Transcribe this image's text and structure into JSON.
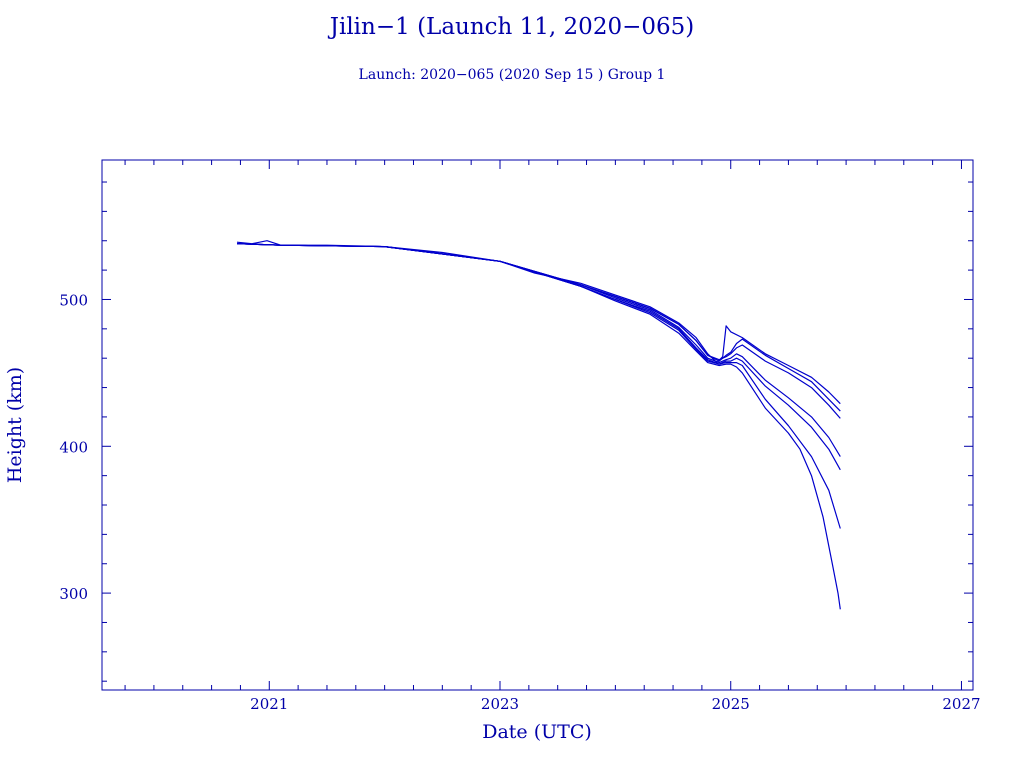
{
  "chart_data": {
    "type": "line",
    "title": "Jilin−1 (Launch 11, 2020−065)",
    "subtitle": "Launch: 2020−065  (2020 Sep 15 )  Group 1",
    "xlabel": "Date (UTC)",
    "ylabel": "Height (km)",
    "xlim": [
      2019.55,
      2027.1
    ],
    "ylim": [
      234,
      595
    ],
    "x_ticks": [
      2021,
      2023,
      2025,
      2027
    ],
    "x_tick_labels": [
      "2021",
      "2023",
      "2025",
      "2027"
    ],
    "y_ticks": [
      300,
      400,
      500
    ],
    "y_tick_labels": [
      "300",
      "400",
      "500"
    ],
    "grid": false,
    "line_color": "#0000cc",
    "axis_color": "#0000a8",
    "series": [
      {
        "x": [
          2020.72,
          2020.85,
          2020.98,
          2021.1,
          2021.5,
          2022.0,
          2022.5,
          2023.0,
          2023.3,
          2023.7,
          2024.0,
          2024.3,
          2024.55,
          2024.7,
          2024.8,
          2024.88,
          2024.93,
          2024.96,
          2025.0,
          2025.1,
          2025.3,
          2025.5,
          2025.7,
          2025.85,
          2025.95
        ],
        "y": [
          539,
          538,
          540,
          537,
          537,
          536,
          532,
          526,
          518,
          511,
          503,
          495,
          484,
          474,
          463,
          457,
          461,
          482,
          478,
          474,
          463,
          455,
          447,
          437,
          429
        ]
      },
      {
        "x": [
          2020.72,
          2021.1,
          2022.0,
          2023.0,
          2023.7,
          2024.0,
          2024.3,
          2024.55,
          2024.7,
          2024.8,
          2024.9,
          2024.96,
          2025.0,
          2025.05,
          2025.1,
          2025.3,
          2025.5,
          2025.7,
          2025.85,
          2025.95
        ],
        "y": [
          538,
          537,
          536,
          526,
          510,
          502,
          494,
          483,
          472,
          462,
          458,
          462,
          464,
          470,
          473,
          462,
          453,
          444,
          432,
          424
        ]
      },
      {
        "x": [
          2020.72,
          2021.1,
          2022.0,
          2023.0,
          2023.7,
          2024.0,
          2024.3,
          2024.55,
          2024.7,
          2024.8,
          2024.9,
          2024.96,
          2025.0,
          2025.05,
          2025.1,
          2025.3,
          2025.5,
          2025.7,
          2025.85,
          2025.95
        ],
        "y": [
          538,
          537,
          536,
          526,
          510,
          502,
          494,
          483,
          472,
          462,
          459,
          461,
          463,
          467,
          469,
          458,
          450,
          440,
          428,
          419
        ]
      },
      {
        "x": [
          2020.72,
          2021.1,
          2022.0,
          2023.0,
          2023.7,
          2024.0,
          2024.3,
          2024.55,
          2024.7,
          2024.8,
          2024.9,
          2024.96,
          2025.0,
          2025.05,
          2025.1,
          2025.3,
          2025.5,
          2025.7,
          2025.85,
          2025.95
        ],
        "y": [
          538,
          537,
          536,
          526,
          510,
          501,
          493,
          481,
          469,
          460,
          457,
          459,
          460,
          463,
          461,
          445,
          433,
          420,
          406,
          393
        ]
      },
      {
        "x": [
          2020.72,
          2021.1,
          2022.0,
          2023.0,
          2023.7,
          2024.0,
          2024.3,
          2024.55,
          2024.7,
          2024.8,
          2024.9,
          2024.96,
          2025.0,
          2025.05,
          2025.1,
          2025.3,
          2025.5,
          2025.7,
          2025.85,
          2025.95
        ],
        "y": [
          538,
          537,
          536,
          526,
          509,
          500,
          492,
          480,
          467,
          459,
          456,
          458,
          458,
          460,
          458,
          441,
          428,
          413,
          398,
          384
        ]
      },
      {
        "x": [
          2020.72,
          2021.1,
          2022.0,
          2023.0,
          2023.7,
          2024.0,
          2024.3,
          2024.55,
          2024.7,
          2024.8,
          2024.9,
          2024.96,
          2025.0,
          2025.05,
          2025.1,
          2025.3,
          2025.5,
          2025.7,
          2025.85,
          2025.95
        ],
        "y": [
          538,
          537,
          536,
          526,
          509,
          500,
          491,
          479,
          466,
          458,
          456,
          457,
          457,
          457,
          455,
          432,
          414,
          393,
          370,
          344
        ]
      },
      {
        "x": [
          2020.72,
          2021.1,
          2022.0,
          2023.0,
          2023.7,
          2024.0,
          2024.3,
          2024.55,
          2024.7,
          2024.8,
          2024.9,
          2024.96,
          2025.0,
          2025.05,
          2025.1,
          2025.3,
          2025.5,
          2025.6,
          2025.7,
          2025.8,
          2025.88,
          2025.93,
          2025.95
        ],
        "y": [
          538,
          537,
          536,
          526,
          509,
          499,
          490,
          477,
          465,
          457,
          455,
          456,
          456,
          454,
          450,
          426,
          409,
          398,
          380,
          352,
          320,
          300,
          289
        ]
      }
    ]
  }
}
